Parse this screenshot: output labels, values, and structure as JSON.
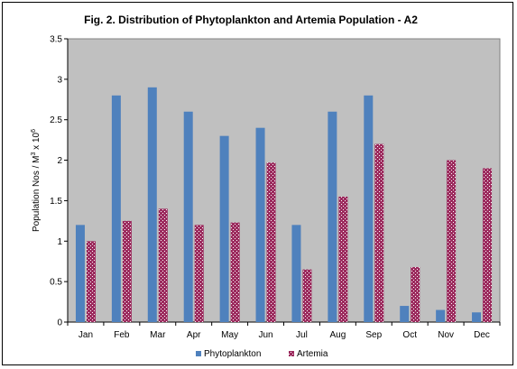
{
  "chart_data": {
    "type": "bar",
    "title": "Fig. 2. Distribution of  Phytoplankton and Artemia Population - A2",
    "ylabel_main": "Population Nos / M",
    "ylabel_sup1": "3",
    "ylabel_mid": " x 10",
    "ylabel_sup2": "6",
    "xlabel": "",
    "categories": [
      "Jan",
      "Feb",
      "Mar",
      "Apr",
      "May",
      "Jun",
      "Jul",
      "Aug",
      "Sep",
      "Oct",
      "Nov",
      "Dec"
    ],
    "series": [
      {
        "name": "Phytoplankton",
        "color": "#4f81bd",
        "pattern": "solid",
        "values": [
          1.2,
          2.8,
          2.9,
          2.6,
          2.3,
          2.4,
          1.2,
          2.6,
          2.8,
          0.2,
          0.15,
          0.12
        ]
      },
      {
        "name": "Artemia",
        "color": "#9c2b5e",
        "pattern": "white-dots",
        "values": [
          1.0,
          1.25,
          1.4,
          1.2,
          1.23,
          1.97,
          0.65,
          1.55,
          2.2,
          0.68,
          2.0,
          1.9
        ]
      }
    ],
    "ylim": [
      0,
      3.5
    ],
    "yticks": [
      "0",
      "0.5",
      "1",
      "1.5",
      "2",
      "2.5",
      "3",
      "3.5"
    ],
    "grid": false,
    "plot_background": "#c0c0c0",
    "legend_position": "bottom"
  }
}
